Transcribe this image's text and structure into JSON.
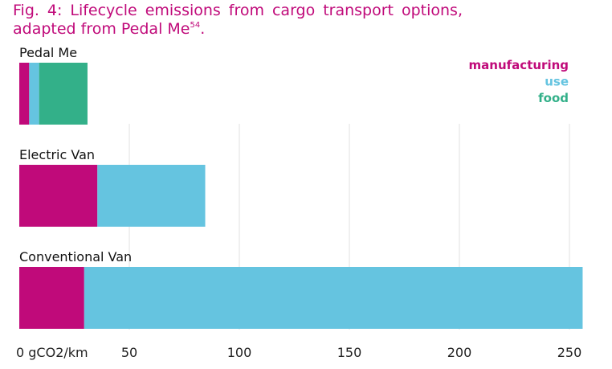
{
  "title": {
    "line1": "Fig. 4: Lifecycle emissions from cargo transport options,",
    "line2": "adapted from Pedal Me",
    "superscript": "54",
    "trailing": "."
  },
  "chart_data": {
    "type": "bar",
    "orientation": "horizontal",
    "stacked": true,
    "categories": [
      "Pedal Me",
      "Electric Van",
      "Conventional Van"
    ],
    "series": [
      {
        "name": "manufacturing",
        "color": "#c00a7a",
        "values": [
          4.5,
          35.5,
          29.5
        ]
      },
      {
        "name": "use",
        "color": "#65c4e0",
        "values": [
          4.5,
          49,
          226.5
        ]
      },
      {
        "name": "food",
        "color": "#33b089",
        "values": [
          22,
          0,
          0
        ]
      }
    ],
    "xlim": [
      0,
      256
    ],
    "xticks": [
      0,
      50,
      100,
      150,
      200,
      250
    ],
    "xtick_labels": [
      "0 gCO2/km",
      "50",
      "100",
      "150",
      "200",
      "250"
    ],
    "grid": true,
    "legend_position": "top-right"
  }
}
